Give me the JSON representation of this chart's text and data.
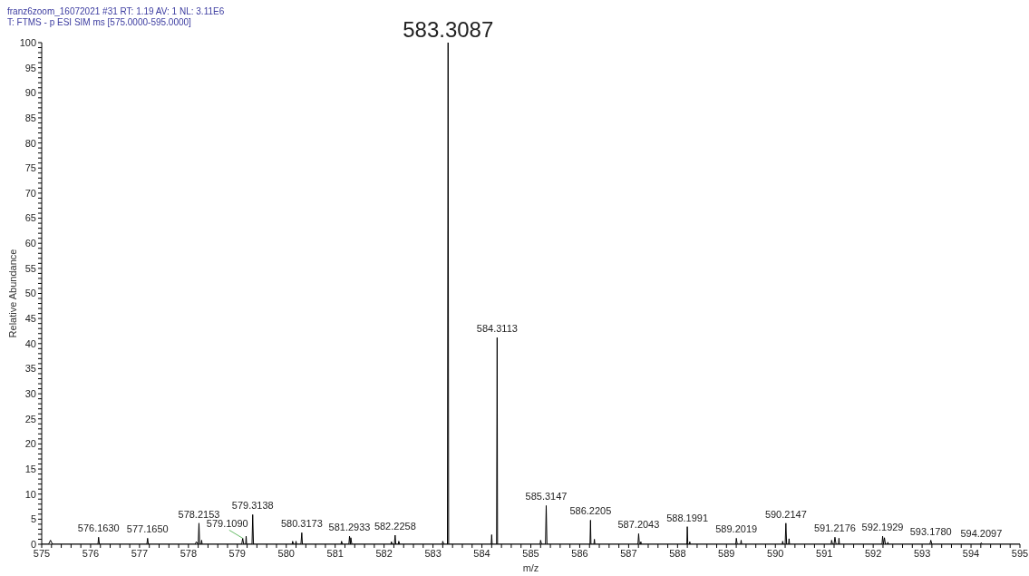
{
  "chart_data": {
    "type": "line",
    "title": "franz6zoom_16072021 #31 RT: 1.19 AV: 1 NL: 3.11E6",
    "subtitle": "T: FTMS - p ESI SIM ms [575.0000-595.0000]",
    "xlabel": "m/z",
    "ylabel": "Relative Abundance",
    "color": "#000000",
    "x": [
      575,
      575.14,
      575.18,
      575.22,
      576.15,
      576.163,
      576.18,
      577.15,
      577.165,
      577.18,
      578.14,
      578.16,
      578.2,
      578.2153,
      578.23,
      578.26,
      578.27,
      578.28,
      579.09,
      579.109,
      579.13,
      579.17,
      579.18,
      579.19,
      579.3,
      579.3138,
      579.33,
      580.12,
      580.13,
      580.15,
      580.19,
      580.2,
      580.21,
      580.3,
      580.3173,
      580.33,
      581.12,
      581.13,
      581.15,
      581.28,
      581.2933,
      581.31,
      581.32,
      581.34,
      582.14,
      582.15,
      582.17,
      582.21,
      582.2258,
      582.24,
      582.29,
      582.3,
      582.32,
      583.19,
      583.2,
      583.22,
      583.295,
      583.3087,
      583.32,
      584.19,
      584.2,
      584.21,
      584.3,
      584.3113,
      584.32,
      585.19,
      585.2,
      585.22,
      585.3,
      585.3147,
      585.33,
      586.21,
      586.2205,
      586.23,
      586.29,
      586.3,
      586.31,
      587.19,
      587.2043,
      587.22,
      587.24,
      587.25,
      587.26,
      588.19,
      588.1991,
      588.21,
      588.24,
      588.25,
      588.26,
      589.19,
      589.2019,
      589.22,
      589.29,
      589.3,
      589.31,
      590.14,
      590.15,
      590.16,
      590.2,
      590.2147,
      590.23,
      590.27,
      590.28,
      590.29,
      591.14,
      591.15,
      591.17,
      591.2,
      591.2176,
      591.24,
      591.29,
      591.3,
      591.31,
      592.18,
      592.1929,
      592.21,
      592.23,
      592.25,
      592.29,
      592.3,
      592.31,
      593.16,
      593.178,
      593.2,
      594.19,
      594.2097,
      594.23,
      595
    ],
    "values": [
      0,
      0,
      0.8,
      0,
      0,
      1.4,
      0,
      0,
      1.2,
      0,
      0,
      0.5,
      0,
      4.2,
      0,
      0,
      0.8,
      0,
      0,
      1.2,
      0,
      0,
      1.6,
      0,
      0,
      5.9,
      0,
      0,
      0.6,
      0,
      0,
      0.6,
      0,
      0,
      2.3,
      0,
      0,
      0.6,
      0,
      0,
      1.6,
      0,
      1.3,
      0,
      0,
      0.5,
      0,
      0,
      1.8,
      0,
      0,
      0.6,
      0,
      0,
      0.6,
      0,
      0,
      100,
      0,
      0,
      1.9,
      0,
      0,
      41.2,
      0,
      0,
      0.8,
      0,
      0,
      7.7,
      0,
      0,
      4.8,
      0,
      0,
      1.0,
      0,
      0,
      2.1,
      0,
      0,
      0.5,
      0,
      0,
      3.5,
      0,
      0,
      0.5,
      0,
      0,
      1.2,
      0,
      0,
      0.8,
      0,
      0,
      0.6,
      0,
      0,
      4.2,
      0,
      0,
      1.1,
      0,
      0,
      0.8,
      0,
      0,
      1.4,
      0,
      0,
      1.2,
      0,
      0,
      1.6,
      0,
      1.3,
      0,
      0,
      0.4,
      0,
      0,
      0.8,
      0,
      0,
      0.3,
      0,
      0
    ],
    "xlim": [
      575,
      595
    ],
    "ylim": [
      0,
      100
    ],
    "xticks": [
      575,
      {
        "value": 575.2,
        "label": null
      },
      {
        "value": 575.4,
        "label": null
      },
      {
        "value": 575.6,
        "label": null
      },
      {
        "value": 575.8,
        "label": null
      },
      576,
      {
        "value": 576.2,
        "label": null
      },
      {
        "value": 576.4,
        "label": null
      },
      {
        "value": 576.6,
        "label": null
      },
      {
        "value": 576.8,
        "label": null
      },
      577,
      {
        "value": 577.2,
        "label": null
      },
      {
        "value": 577.4,
        "label": null
      },
      {
        "value": 577.6,
        "label": null
      },
      {
        "value": 577.8,
        "label": null
      },
      578,
      {
        "value": 578.2,
        "label": null
      },
      {
        "value": 578.4,
        "label": null
      },
      {
        "value": 578.6,
        "label": null
      },
      {
        "value": 578.8,
        "label": null
      },
      579,
      {
        "value": 579.2,
        "label": null
      },
      {
        "value": 579.4,
        "label": null
      },
      {
        "value": 579.6,
        "label": null
      },
      {
        "value": 579.8,
        "label": null
      },
      580,
      {
        "value": 580.2,
        "label": null
      },
      {
        "value": 580.4,
        "label": null
      },
      {
        "value": 580.6,
        "label": null
      },
      {
        "value": 580.8,
        "label": null
      },
      581,
      {
        "value": 581.2,
        "label": null
      },
      {
        "value": 581.4,
        "label": null
      },
      {
        "value": 581.6,
        "label": null
      },
      {
        "value": 581.8,
        "label": null
      },
      582,
      {
        "value": 582.2,
        "label": null
      },
      {
        "value": 582.4,
        "label": null
      },
      {
        "value": 582.6,
        "label": null
      },
      {
        "value": 582.8,
        "label": null
      },
      583,
      {
        "value": 583.2,
        "label": null
      },
      {
        "value": 583.4,
        "label": null
      },
      {
        "value": 583.6,
        "label": null
      },
      {
        "value": 583.8,
        "label": null
      },
      584,
      {
        "value": 584.2,
        "label": null
      },
      {
        "value": 584.4,
        "label": null
      },
      {
        "value": 584.6,
        "label": null
      },
      {
        "value": 584.8,
        "label": null
      },
      585,
      {
        "value": 585.2,
        "label": null
      },
      {
        "value": 585.4,
        "label": null
      },
      {
        "value": 585.6,
        "label": null
      },
      {
        "value": 585.8,
        "label": null
      },
      586,
      {
        "value": 586.2,
        "label": null
      },
      {
        "value": 586.4,
        "label": null
      },
      {
        "value": 586.6,
        "label": null
      },
      {
        "value": 586.8,
        "label": null
      },
      587,
      {
        "value": 587.2,
        "label": null
      },
      {
        "value": 587.4,
        "label": null
      },
      {
        "value": 587.6,
        "label": null
      },
      {
        "value": 587.8,
        "label": null
      },
      588,
      {
        "value": 588.2,
        "label": null
      },
      {
        "value": 588.4,
        "label": null
      },
      {
        "value": 588.6,
        "label": null
      },
      {
        "value": 588.8,
        "label": null
      },
      589,
      {
        "value": 589.2,
        "label": null
      },
      {
        "value": 589.4,
        "label": null
      },
      {
        "value": 589.6,
        "label": null
      },
      {
        "value": 589.8,
        "label": null
      },
      590,
      {
        "value": 590.2,
        "label": null
      },
      {
        "value": 590.4,
        "label": null
      },
      {
        "value": 590.6,
        "label": null
      },
      {
        "value": 590.8,
        "label": null
      },
      591,
      {
        "value": 591.2,
        "label": null
      },
      {
        "value": 591.4,
        "label": null
      },
      {
        "value": 591.6,
        "label": null
      },
      {
        "value": 591.8,
        "label": null
      },
      592,
      {
        "value": 592.2,
        "label": null
      },
      {
        "value": 592.4,
        "label": null
      },
      {
        "value": 592.6,
        "label": null
      },
      {
        "value": 592.8,
        "label": null
      },
      593,
      {
        "value": 593.2,
        "label": null
      },
      {
        "value": 593.4,
        "label": null
      },
      {
        "value": 593.6,
        "label": null
      },
      {
        "value": 593.8,
        "label": null
      },
      594,
      {
        "value": 594.2,
        "label": null
      },
      {
        "value": 594.4,
        "label": null
      },
      {
        "value": 594.6,
        "label": null
      },
      {
        "value": 594.8,
        "label": null
      },
      595
    ],
    "yticks": [
      0,
      {
        "value": 1,
        "label": null
      },
      {
        "value": 2,
        "label": null
      },
      {
        "value": 3,
        "label": null
      },
      {
        "value": 4,
        "label": null
      },
      5,
      {
        "value": 6,
        "label": null
      },
      {
        "value": 7,
        "label": null
      },
      {
        "value": 8,
        "label": null
      },
      {
        "value": 9,
        "label": null
      },
      10,
      {
        "value": 11,
        "label": null
      },
      {
        "value": 12,
        "label": null
      },
      {
        "value": 13,
        "label": null
      },
      {
        "value": 14,
        "label": null
      },
      15,
      {
        "value": 16,
        "label": null
      },
      {
        "value": 17,
        "label": null
      },
      {
        "value": 18,
        "label": null
      },
      {
        "value": 19,
        "label": null
      },
      20,
      {
        "value": 21,
        "label": null
      },
      {
        "value": 22,
        "label": null
      },
      {
        "value": 23,
        "label": null
      },
      {
        "value": 24,
        "label": null
      },
      25,
      {
        "value": 26,
        "label": null
      },
      {
        "value": 27,
        "label": null
      },
      {
        "value": 28,
        "label": null
      },
      {
        "value": 29,
        "label": null
      },
      30,
      {
        "value": 31,
        "label": null
      },
      {
        "value": 32,
        "label": null
      },
      {
        "value": 33,
        "label": null
      },
      {
        "value": 34,
        "label": null
      },
      35,
      {
        "value": 36,
        "label": null
      },
      {
        "value": 37,
        "label": null
      },
      {
        "value": 38,
        "label": null
      },
      {
        "value": 39,
        "label": null
      },
      40,
      {
        "value": 41,
        "label": null
      },
      {
        "value": 42,
        "label": null
      },
      {
        "value": 43,
        "label": null
      },
      {
        "value": 44,
        "label": null
      },
      45,
      {
        "value": 46,
        "label": null
      },
      {
        "value": 47,
        "label": null
      },
      {
        "value": 48,
        "label": null
      },
      {
        "value": 49,
        "label": null
      },
      50,
      {
        "value": 51,
        "label": null
      },
      {
        "value": 52,
        "label": null
      },
      {
        "value": 53,
        "label": null
      },
      {
        "value": 54,
        "label": null
      },
      55,
      {
        "value": 56,
        "label": null
      },
      {
        "value": 57,
        "label": null
      },
      {
        "value": 58,
        "label": null
      },
      {
        "value": 59,
        "label": null
      },
      60,
      {
        "value": 61,
        "label": null
      },
      {
        "value": 62,
        "label": null
      },
      {
        "value": 63,
        "label": null
      },
      {
        "value": 64,
        "label": null
      },
      65,
      {
        "value": 66,
        "label": null
      },
      {
        "value": 67,
        "label": null
      },
      {
        "value": 68,
        "label": null
      },
      {
        "value": 69,
        "label": null
      },
      70,
      {
        "value": 71,
        "label": null
      },
      {
        "value": 72,
        "label": null
      },
      {
        "value": 73,
        "label": null
      },
      {
        "value": 74,
        "label": null
      },
      75,
      {
        "value": 76,
        "label": null
      },
      {
        "value": 77,
        "label": null
      },
      {
        "value": 78,
        "label": null
      },
      {
        "value": 79,
        "label": null
      },
      80,
      {
        "value": 81,
        "label": null
      },
      {
        "value": 82,
        "label": null
      },
      {
        "value": 83,
        "label": null
      },
      {
        "value": 84,
        "label": null
      },
      85,
      {
        "value": 86,
        "label": null
      },
      {
        "value": 87,
        "label": null
      },
      {
        "value": 88,
        "label": null
      },
      {
        "value": 89,
        "label": null
      },
      90,
      {
        "value": 91,
        "label": null
      },
      {
        "value": 92,
        "label": null
      },
      {
        "value": 93,
        "label": null
      },
      {
        "value": 94,
        "label": null
      },
      95,
      {
        "value": 96,
        "label": null
      },
      {
        "value": 97,
        "label": null
      },
      {
        "value": 98,
        "label": null
      },
      {
        "value": 99,
        "label": null
      },
      100
    ],
    "annotations": [
      {
        "text": "583.3087",
        "x": 583.3087,
        "y": 100
      },
      {
        "text": "584.3113",
        "x": 584.3113,
        "y": 41.2
      },
      {
        "text": "585.3147",
        "x": 585.3147,
        "y": 7.7
      },
      {
        "text": "586.2205",
        "x": 586.2205,
        "y": 4.8
      },
      {
        "text": "587.2043",
        "x": 587.2043,
        "y": 2.1
      },
      {
        "text": "588.1991",
        "x": 588.1991,
        "y": 3.5
      },
      {
        "text": "589.2019",
        "x": 589.2019,
        "y": 1.2
      },
      {
        "text": "590.2147",
        "x": 590.2147,
        "y": 4.2
      },
      {
        "text": "591.2176",
        "x": 591.2176,
        "y": 1.4
      },
      {
        "text": "592.1929",
        "x": 592.1929,
        "y": 1.6
      },
      {
        "text": "593.1780",
        "x": 593.178,
        "y": 0.8
      },
      {
        "text": "594.2097",
        "x": 594.2097,
        "y": 0.3
      },
      {
        "text": "576.1630",
        "x": 576.163,
        "y": 1.4
      },
      {
        "text": "577.1650",
        "x": 577.165,
        "y": 1.2
      },
      {
        "text": "578.2153",
        "x": 578.2153,
        "y": 4.2
      },
      {
        "text": "579.1090",
        "x": 579.109,
        "y": 1.2
      },
      {
        "text": "579.3138",
        "x": 579.3138,
        "y": 5.9
      },
      {
        "text": "580.3173",
        "x": 580.3173,
        "y": 2.3
      },
      {
        "text": "581.2933",
        "x": 581.2933,
        "y": 1.6
      },
      {
        "text": "582.2258",
        "x": 582.2258,
        "y": 1.8
      }
    ]
  }
}
